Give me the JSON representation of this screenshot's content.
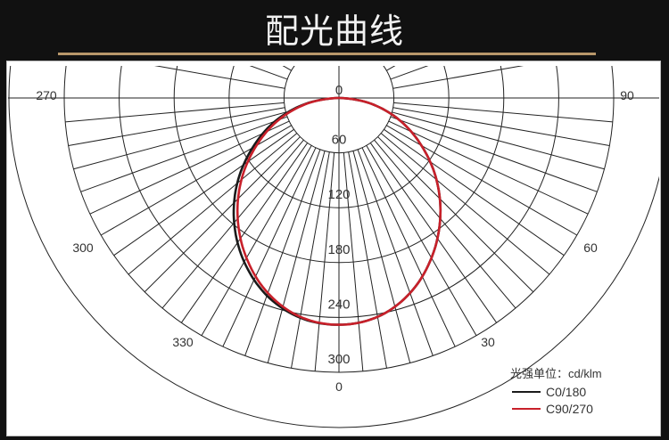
{
  "title": "配光曲线",
  "colors": {
    "background": "#111111",
    "accent_line": "#b8976a",
    "c0": "#1a1a1a",
    "c90": "#c8202a"
  },
  "chart_data": {
    "type": "polar",
    "title": "配光曲线",
    "unit_label": "光强单位：cd/klm",
    "radial_ticks": [
      "0",
      "60",
      "120",
      "180",
      "240",
      "300"
    ],
    "radial_range": [
      0,
      300
    ],
    "angle_labels": [
      {
        "label": "270",
        "angle": -90
      },
      {
        "label": "300",
        "angle": -60
      },
      {
        "label": "330",
        "angle": -30
      },
      {
        "label": "0",
        "angle": 0
      },
      {
        "label": "30",
        "angle": 30
      },
      {
        "label": "60",
        "angle": 60
      },
      {
        "label": "90",
        "angle": 90
      }
    ],
    "grid": true,
    "legend_position": "bottom-right",
    "angles": [
      -90,
      -80,
      -70,
      -60,
      -50,
      -40,
      -30,
      -20,
      -10,
      0,
      10,
      20,
      30,
      40,
      50,
      60,
      70,
      80,
      90
    ],
    "series": [
      {
        "name": "C0/180",
        "color": "#1a1a1a",
        "values": [
          0,
          37,
          74,
          109,
          145,
          178,
          207,
          230,
          244,
          248,
          243,
          227,
          202,
          172,
          139,
          104,
          70,
          35,
          0
        ]
      },
      {
        "name": "C90/270",
        "color": "#c8202a",
        "values": [
          0,
          35,
          70,
          104,
          139,
          172,
          202,
          227,
          243,
          248,
          243,
          227,
          202,
          172,
          139,
          104,
          70,
          35,
          0
        ]
      }
    ]
  }
}
